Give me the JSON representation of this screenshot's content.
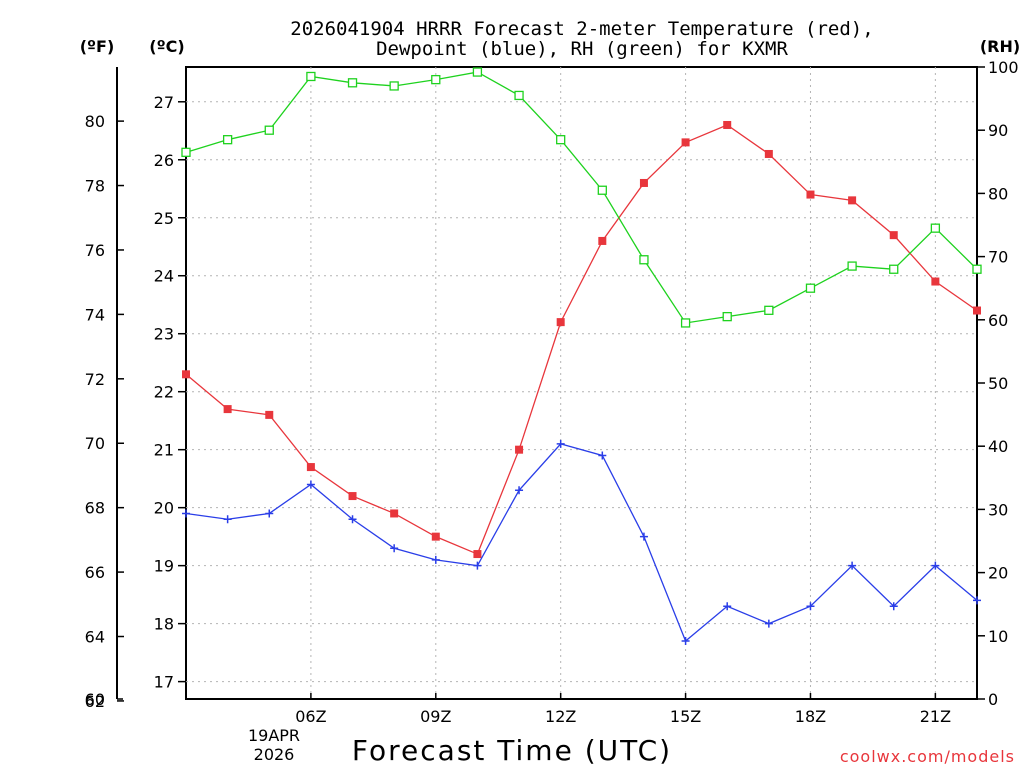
{
  "chart_data": {
    "type": "line",
    "title_line1": "2026041904 HRRR Forecast 2-meter Temperature (red),",
    "title_line2": "Dewpoint (blue), RH (green) for KXMR",
    "xlabel": "Forecast Time (UTC)",
    "watermark": "coolwx.com/models",
    "left_unit_f": "(ºF)",
    "left_unit_c": "(ºC)",
    "right_unit": "(RH)",
    "date_label_line1": "19APR",
    "date_label_line2": "2026",
    "x_range": [
      3,
      22
    ],
    "x_ticks": [
      {
        "hour": 6,
        "label": "06Z"
      },
      {
        "hour": 9,
        "label": "09Z"
      },
      {
        "hour": 12,
        "label": "12Z"
      },
      {
        "hour": 15,
        "label": "15Z"
      },
      {
        "hour": 18,
        "label": "18Z"
      },
      {
        "hour": 21,
        "label": "21Z"
      }
    ],
    "x_hours": [
      3,
      4,
      5,
      6,
      7,
      8,
      9,
      10,
      11,
      12,
      13,
      14,
      15,
      16,
      17,
      18,
      19,
      20,
      21,
      22
    ],
    "c_range": [
      16.7,
      27.6
    ],
    "c_ticks": [
      17,
      18,
      19,
      20,
      21,
      22,
      23,
      24,
      25,
      26,
      27
    ],
    "f_ticks": [
      62,
      64,
      66,
      68,
      70,
      72,
      74,
      76,
      78,
      80
    ],
    "rh_range": [
      0,
      100
    ],
    "rh_ticks": [
      0,
      10,
      20,
      30,
      40,
      50,
      60,
      70,
      80,
      90,
      100
    ],
    "grid": true,
    "series": [
      {
        "name": "Temperature",
        "unit": "C",
        "color": "#e8363c",
        "values": [
          22.3,
          21.7,
          21.6,
          20.7,
          20.2,
          19.9,
          19.5,
          19.2,
          21.0,
          23.2,
          24.6,
          25.6,
          26.3,
          26.6,
          26.1,
          25.4,
          25.3,
          24.7,
          23.9,
          23.4
        ]
      },
      {
        "name": "Dewpoint",
        "unit": "C",
        "color": "#2a3ee8",
        "values": [
          19.9,
          19.8,
          19.9,
          20.4,
          19.8,
          19.3,
          19.1,
          19.0,
          20.3,
          21.1,
          20.9,
          19.5,
          17.7,
          18.3,
          18.0,
          18.3,
          19.0,
          18.3,
          19.0,
          18.4
        ]
      },
      {
        "name": "RH",
        "unit": "%",
        "color": "#1ed21e",
        "values": [
          86.5,
          88.5,
          90,
          98.5,
          97.5,
          97,
          98,
          99.2,
          95.5,
          88.5,
          80.5,
          69.5,
          59.5,
          60.5,
          61.5,
          65,
          68.5,
          68,
          74.5,
          68
        ]
      }
    ]
  }
}
